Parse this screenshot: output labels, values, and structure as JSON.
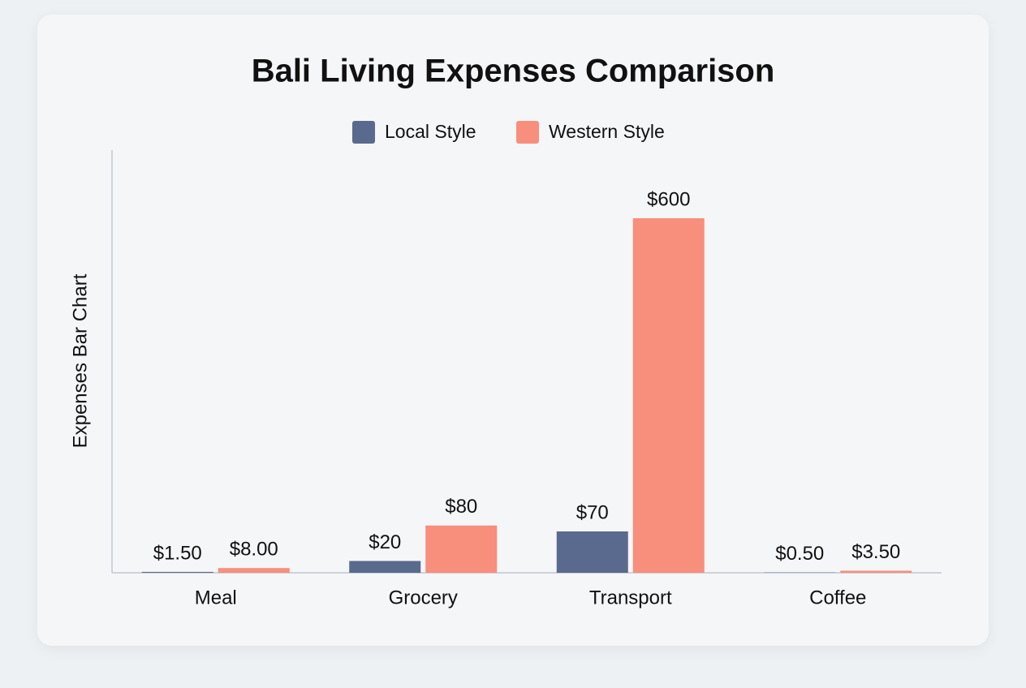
{
  "chart_data": {
    "type": "bar",
    "title": "Bali Living Expenses Comparison",
    "y_label": "Expenses Bar Chart",
    "categories": [
      "Meal",
      "Grocery",
      "Transport",
      "Coffee"
    ],
    "series": [
      {
        "name": "Local Style",
        "color": "#5a6a8e",
        "values": [
          1.5,
          20,
          70,
          0.5
        ],
        "value_labels": [
          "$1.50",
          "$20",
          "$70",
          "$0.50"
        ]
      },
      {
        "name": "Western Style",
        "color": "#f88e7c",
        "values": [
          8,
          80,
          600,
          3.5
        ],
        "value_labels": [
          "$8.00",
          "$80",
          "$600",
          "$3.50"
        ]
      }
    ]
  }
}
